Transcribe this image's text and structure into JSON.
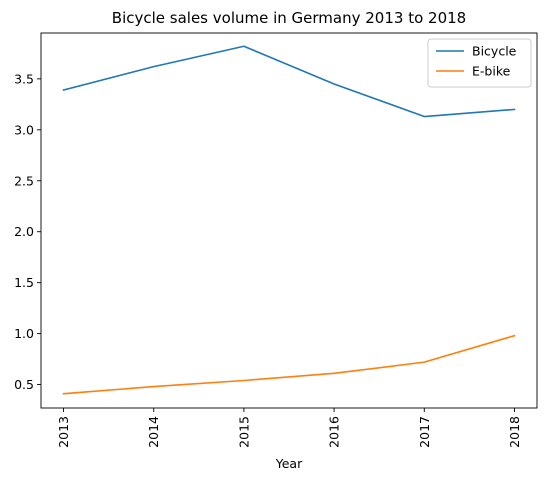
{
  "chart_data": {
    "type": "line",
    "title": "Bicycle sales volume in Germany 2013 to 2018",
    "xlabel": "Year",
    "ylabel": "",
    "categories": [
      "2013",
      "2014",
      "2015",
      "2016",
      "2017",
      "2018"
    ],
    "series": [
      {
        "name": "Bicycle",
        "color": "#1f77b4",
        "values": [
          3.39,
          3.62,
          3.82,
          3.45,
          3.13,
          3.2
        ]
      },
      {
        "name": "E-bike",
        "color": "#ff7f0e",
        "values": [
          0.41,
          0.48,
          0.54,
          0.61,
          0.72,
          0.98
        ]
      }
    ],
    "ylim": [
      0.27,
      3.95
    ],
    "yticks": [
      0.5,
      1.0,
      1.5,
      2.0,
      2.5,
      3.0,
      3.5
    ],
    "ytick_labels": [
      "0.5",
      "1.0",
      "1.5",
      "2.0",
      "2.5",
      "3.0",
      "3.5"
    ],
    "grid": false,
    "legend_position": "top-right"
  }
}
